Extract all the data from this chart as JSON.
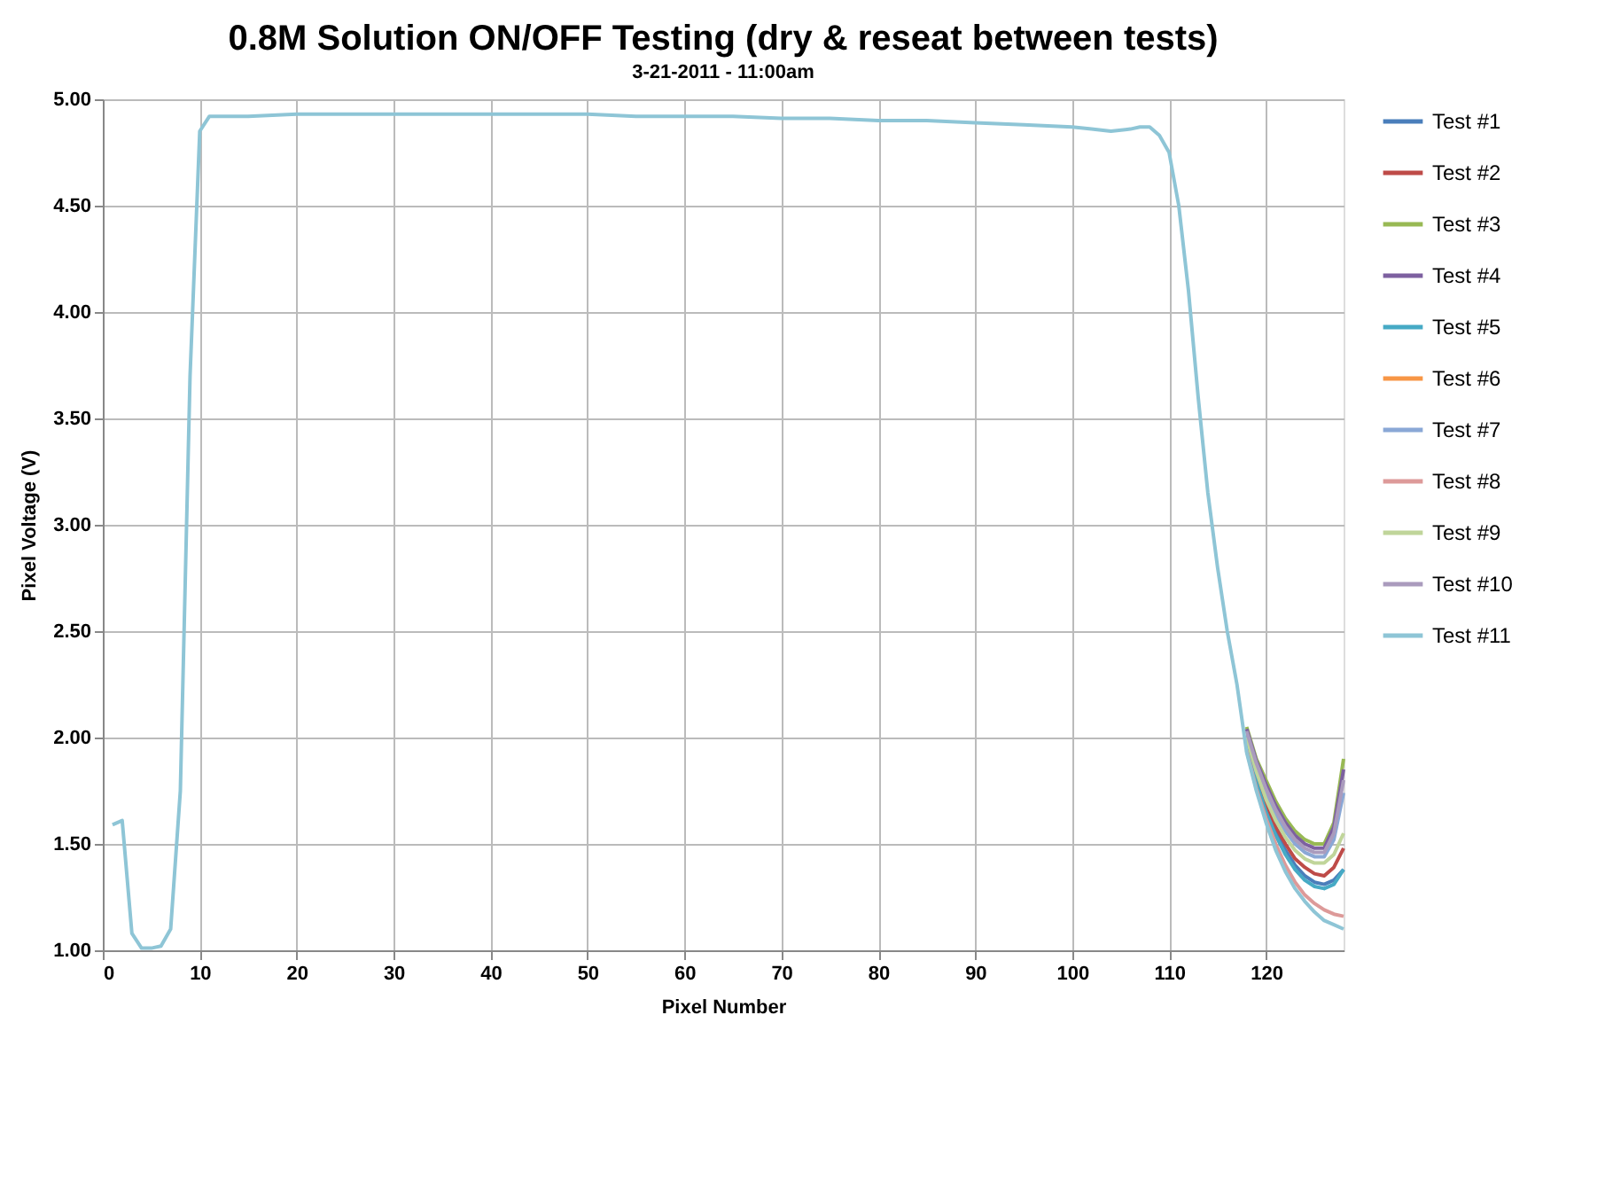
{
  "chart_data": {
    "type": "line",
    "title": "0.8M Solution ON/OFF Testing (dry & reseat between tests)",
    "subtitle": "3-21-2011 - 11:00am",
    "xlabel": "Pixel Number",
    "ylabel": "Pixel Voltage (V)",
    "x": [
      1,
      2,
      3,
      4,
      5,
      6,
      7,
      8,
      9,
      10,
      11,
      12,
      15,
      20,
      25,
      30,
      35,
      40,
      45,
      50,
      55,
      60,
      65,
      70,
      75,
      80,
      85,
      90,
      95,
      100,
      102,
      104,
      106,
      107,
      108,
      109,
      110,
      111,
      112,
      113,
      114,
      115,
      116,
      117,
      118,
      119,
      120,
      121,
      122,
      123,
      124,
      125,
      126,
      127,
      128
    ],
    "xlim": [
      0,
      128
    ],
    "xticks": [
      0,
      10,
      20,
      30,
      40,
      50,
      60,
      70,
      80,
      90,
      100,
      110,
      120
    ],
    "ylim": [
      1,
      5
    ],
    "yticks": [
      {
        "value": 1,
        "label": "1.00"
      },
      {
        "value": 1.5,
        "label": "1.50"
      },
      {
        "value": 2,
        "label": "2.00"
      },
      {
        "value": 2.5,
        "label": "2.50"
      },
      {
        "value": 3,
        "label": "3.00"
      },
      {
        "value": 3.5,
        "label": "3.50"
      },
      {
        "value": 4,
        "label": "4.00"
      },
      {
        "value": 4.5,
        "label": "4.50"
      },
      {
        "value": 5,
        "label": "5.00"
      }
    ],
    "grid": true,
    "legend": "right",
    "marker": "none",
    "line_style": "solid",
    "series": [
      {
        "name": "Test #1",
        "color": "#4a7ebb",
        "values": [
          null,
          null,
          null,
          null,
          null,
          null,
          null,
          null,
          null,
          null,
          null,
          null,
          null,
          null,
          null,
          null,
          null,
          null,
          null,
          null,
          null,
          null,
          null,
          null,
          null,
          null,
          null,
          null,
          null,
          null,
          null,
          null,
          null,
          null,
          null,
          null,
          null,
          null,
          null,
          null,
          null,
          null,
          null,
          null,
          1.97,
          1.8,
          1.67,
          1.56,
          1.47,
          1.4,
          1.35,
          1.32,
          1.31,
          1.33,
          1.38
        ]
      },
      {
        "name": "Test #2",
        "color": "#be4b48",
        "values": [
          null,
          null,
          null,
          null,
          null,
          null,
          null,
          null,
          null,
          null,
          null,
          null,
          null,
          null,
          null,
          null,
          null,
          null,
          null,
          null,
          null,
          null,
          null,
          null,
          null,
          null,
          null,
          null,
          null,
          null,
          null,
          null,
          null,
          null,
          null,
          null,
          null,
          null,
          null,
          null,
          null,
          null,
          null,
          null,
          1.98,
          1.81,
          1.69,
          1.58,
          1.5,
          1.43,
          1.39,
          1.36,
          1.35,
          1.39,
          1.48
        ]
      },
      {
        "name": "Test #3",
        "color": "#98b954",
        "values": [
          null,
          null,
          null,
          null,
          null,
          null,
          null,
          null,
          null,
          null,
          null,
          null,
          null,
          null,
          null,
          null,
          null,
          null,
          null,
          null,
          null,
          null,
          null,
          null,
          null,
          null,
          null,
          null,
          null,
          null,
          null,
          null,
          null,
          null,
          null,
          null,
          null,
          null,
          null,
          null,
          null,
          null,
          null,
          null,
          2.05,
          1.9,
          1.8,
          1.7,
          1.62,
          1.56,
          1.52,
          1.5,
          1.5,
          1.6,
          1.9
        ]
      },
      {
        "name": "Test #4",
        "color": "#7d60a0",
        "values": [
          null,
          null,
          null,
          null,
          null,
          null,
          null,
          null,
          null,
          null,
          null,
          null,
          null,
          null,
          null,
          null,
          null,
          null,
          null,
          null,
          null,
          null,
          null,
          null,
          null,
          null,
          null,
          null,
          null,
          null,
          null,
          null,
          null,
          null,
          null,
          null,
          null,
          null,
          null,
          null,
          null,
          null,
          null,
          null,
          2.04,
          1.89,
          1.78,
          1.68,
          1.6,
          1.54,
          1.5,
          1.48,
          1.48,
          1.58,
          1.85
        ]
      },
      {
        "name": "Test #5",
        "color": "#46aac5",
        "values": [
          null,
          null,
          null,
          null,
          null,
          null,
          null,
          null,
          null,
          null,
          null,
          null,
          null,
          null,
          null,
          null,
          null,
          null,
          null,
          null,
          null,
          null,
          null,
          null,
          null,
          null,
          null,
          null,
          null,
          null,
          null,
          null,
          null,
          null,
          null,
          null,
          null,
          null,
          null,
          null,
          null,
          null,
          null,
          null,
          1.96,
          1.79,
          1.65,
          1.54,
          1.45,
          1.38,
          1.33,
          1.3,
          1.29,
          1.31,
          1.38
        ]
      },
      {
        "name": "Test #6",
        "color": "#f79646",
        "values": [
          null,
          null,
          null,
          null,
          null,
          null,
          null,
          null,
          null,
          null,
          null,
          null,
          null,
          null,
          null,
          null,
          null,
          null,
          null,
          null,
          null,
          null,
          null,
          null,
          null,
          null,
          null,
          null,
          null,
          null,
          null,
          null,
          null,
          null,
          null,
          null,
          null,
          null,
          null,
          null,
          null,
          null,
          null,
          null,
          null,
          null,
          null,
          null,
          null,
          null,
          null,
          null,
          null,
          null,
          null
        ]
      },
      {
        "name": "Test #7",
        "color": "#8aa8d6",
        "values": [
          null,
          null,
          null,
          null,
          null,
          null,
          null,
          null,
          null,
          null,
          null,
          null,
          null,
          null,
          null,
          null,
          null,
          null,
          null,
          null,
          null,
          null,
          null,
          null,
          null,
          null,
          null,
          null,
          null,
          null,
          null,
          null,
          null,
          null,
          null,
          null,
          null,
          null,
          null,
          null,
          null,
          null,
          null,
          null,
          2.01,
          1.86,
          1.74,
          1.64,
          1.56,
          1.5,
          1.46,
          1.44,
          1.44,
          1.52,
          1.74
        ]
      },
      {
        "name": "Test #8",
        "color": "#dd9a99",
        "values": [
          null,
          null,
          null,
          null,
          null,
          null,
          null,
          null,
          null,
          null,
          null,
          null,
          null,
          null,
          null,
          null,
          null,
          null,
          null,
          null,
          null,
          null,
          null,
          null,
          null,
          null,
          null,
          null,
          null,
          null,
          null,
          null,
          null,
          null,
          null,
          null,
          null,
          null,
          null,
          null,
          null,
          null,
          null,
          null,
          1.94,
          1.76,
          1.62,
          1.5,
          1.4,
          1.32,
          1.26,
          1.22,
          1.19,
          1.17,
          1.16
        ]
      },
      {
        "name": "Test #9",
        "color": "#c0d59a",
        "values": [
          null,
          null,
          null,
          null,
          null,
          null,
          null,
          null,
          null,
          null,
          null,
          null,
          null,
          null,
          null,
          null,
          null,
          null,
          null,
          null,
          null,
          null,
          null,
          null,
          null,
          null,
          null,
          null,
          null,
          null,
          null,
          null,
          null,
          null,
          null,
          null,
          null,
          null,
          null,
          null,
          null,
          null,
          null,
          null,
          2.0,
          1.84,
          1.71,
          1.61,
          1.53,
          1.47,
          1.43,
          1.41,
          1.41,
          1.45,
          1.55
        ]
      },
      {
        "name": "Test #10",
        "color": "#aa9bbd",
        "values": [
          null,
          null,
          null,
          null,
          null,
          null,
          null,
          null,
          null,
          null,
          null,
          null,
          null,
          null,
          null,
          null,
          null,
          null,
          null,
          null,
          null,
          null,
          null,
          null,
          null,
          null,
          null,
          null,
          null,
          null,
          null,
          null,
          null,
          null,
          null,
          null,
          null,
          null,
          null,
          null,
          null,
          null,
          null,
          null,
          2.03,
          1.88,
          1.76,
          1.66,
          1.58,
          1.52,
          1.48,
          1.46,
          1.46,
          1.55,
          1.8
        ]
      },
      {
        "name": "Test #11",
        "color": "#8ec5d6",
        "values": [
          1.59,
          1.61,
          1.08,
          1.01,
          1.01,
          1.02,
          1.1,
          1.75,
          3.7,
          4.85,
          4.92,
          4.92,
          4.92,
          4.93,
          4.93,
          4.93,
          4.93,
          4.93,
          4.93,
          4.93,
          4.92,
          4.92,
          4.92,
          4.91,
          4.91,
          4.9,
          4.9,
          4.89,
          4.88,
          4.87,
          4.86,
          4.85,
          4.86,
          4.87,
          4.87,
          4.83,
          4.75,
          4.5,
          4.1,
          3.6,
          3.15,
          2.8,
          2.5,
          2.25,
          1.93,
          1.75,
          1.6,
          1.47,
          1.37,
          1.29,
          1.23,
          1.18,
          1.14,
          1.12,
          1.1
        ]
      }
    ]
  }
}
